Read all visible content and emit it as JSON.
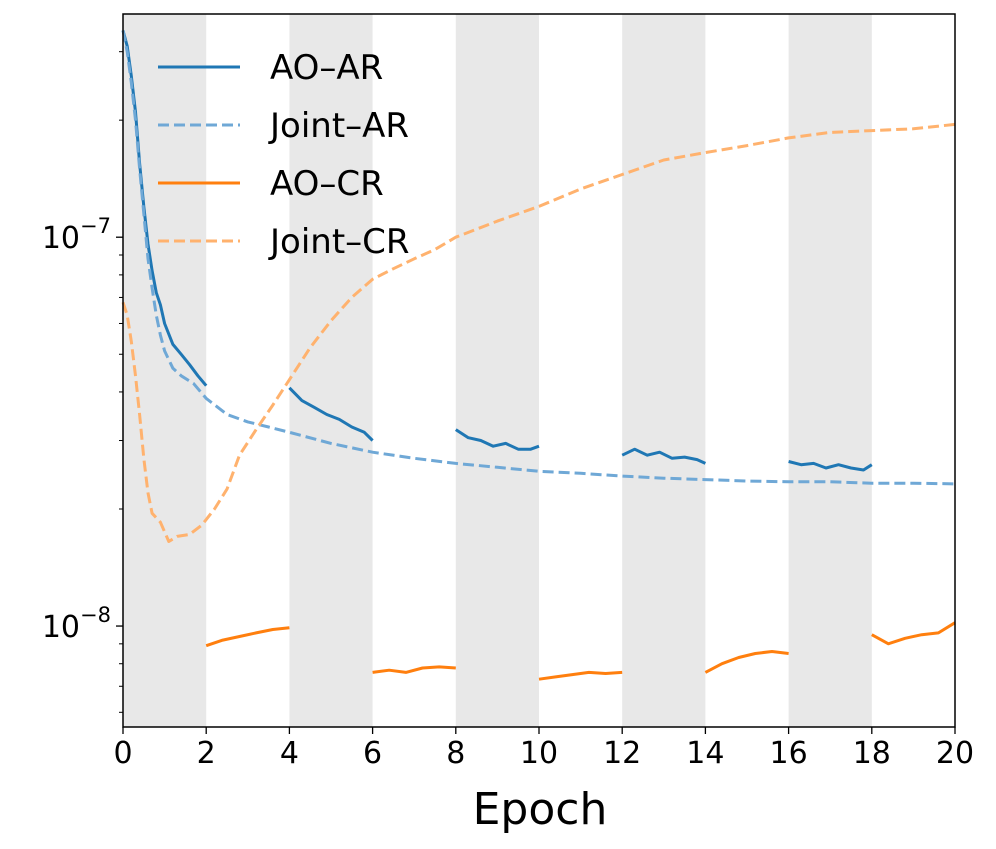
{
  "chart_data": {
    "type": "line",
    "title": "",
    "xlabel": "Epoch",
    "ylabel": "",
    "yscale": "log",
    "xlim": [
      0,
      20
    ],
    "ylim": [
      5.5e-09,
      3.75e-07
    ],
    "x_ticks": [
      0,
      2,
      4,
      6,
      8,
      10,
      12,
      14,
      16,
      18,
      20
    ],
    "x_tick_labels": [
      "0",
      "2",
      "4",
      "6",
      "8",
      "10",
      "12",
      "14",
      "16",
      "18",
      "20"
    ],
    "y_major_ticks": [
      1e-08,
      1e-07
    ],
    "y_tick_labels": [
      {
        "base": "10",
        "exp": "−8"
      },
      {
        "base": "10",
        "exp": "−7"
      }
    ],
    "shaded_epoch_ranges": [
      [
        0,
        2
      ],
      [
        4,
        6
      ],
      [
        8,
        10
      ],
      [
        12,
        14
      ],
      [
        16,
        18
      ]
    ],
    "legend_position": "top-left",
    "series": [
      {
        "name": "AO–AR",
        "color": "#1f77b4",
        "style": "solid",
        "points": [
          [
            0,
            3.4e-07
          ],
          [
            0.1,
            3.1e-07
          ],
          [
            0.2,
            2.6e-07
          ],
          [
            0.3,
            2.1e-07
          ],
          [
            0.4,
            1.55e-07
          ],
          [
            0.5,
            1.2e-07
          ],
          [
            0.6,
            9.6e-08
          ],
          [
            0.7,
            8.2e-08
          ],
          [
            0.8,
            7.2e-08
          ],
          [
            0.9,
            6.7e-08
          ],
          [
            1.0,
            6e-08
          ],
          [
            1.2,
            5.3e-08
          ],
          [
            1.4,
            5e-08
          ],
          [
            1.6,
            4.7e-08
          ],
          [
            1.8,
            4.4e-08
          ],
          [
            2.0,
            4.15e-08
          ],
          null,
          [
            4.0,
            4.1e-08
          ],
          [
            4.3,
            3.8e-08
          ],
          [
            4.6,
            3.65e-08
          ],
          [
            4.9,
            3.5e-08
          ],
          [
            5.2,
            3.4e-08
          ],
          [
            5.5,
            3.25e-08
          ],
          [
            5.8,
            3.15e-08
          ],
          [
            6.0,
            3e-08
          ],
          null,
          [
            8.0,
            3.2e-08
          ],
          [
            8.3,
            3.05e-08
          ],
          [
            8.6,
            3e-08
          ],
          [
            8.9,
            2.9e-08
          ],
          [
            9.2,
            2.95e-08
          ],
          [
            9.5,
            2.85e-08
          ],
          [
            9.8,
            2.85e-08
          ],
          [
            10.0,
            2.9e-08
          ],
          null,
          [
            12.0,
            2.75e-08
          ],
          [
            12.3,
            2.85e-08
          ],
          [
            12.6,
            2.75e-08
          ],
          [
            12.9,
            2.8e-08
          ],
          [
            13.2,
            2.7e-08
          ],
          [
            13.5,
            2.72e-08
          ],
          [
            13.8,
            2.68e-08
          ],
          [
            14.0,
            2.62e-08
          ],
          null,
          [
            16.0,
            2.65e-08
          ],
          [
            16.3,
            2.6e-08
          ],
          [
            16.6,
            2.62e-08
          ],
          [
            16.9,
            2.55e-08
          ],
          [
            17.2,
            2.6e-08
          ],
          [
            17.5,
            2.55e-08
          ],
          [
            17.8,
            2.52e-08
          ],
          [
            18.0,
            2.6e-08
          ]
        ]
      },
      {
        "name": "Joint–AR",
        "color": "#6fa8d6",
        "style": "dashed",
        "points": [
          [
            0,
            3.4e-07
          ],
          [
            0.1,
            3e-07
          ],
          [
            0.2,
            2.5e-07
          ],
          [
            0.3,
            2e-07
          ],
          [
            0.4,
            1.5e-07
          ],
          [
            0.5,
            1.15e-07
          ],
          [
            0.6,
            8.8e-08
          ],
          [
            0.7,
            7.4e-08
          ],
          [
            0.8,
            6.3e-08
          ],
          [
            0.9,
            5.6e-08
          ],
          [
            1.0,
            5.1e-08
          ],
          [
            1.2,
            4.6e-08
          ],
          [
            1.4,
            4.4e-08
          ],
          [
            1.7,
            4.2e-08
          ],
          [
            2.0,
            3.85e-08
          ],
          [
            2.5,
            3.5e-08
          ],
          [
            3.0,
            3.35e-08
          ],
          [
            3.5,
            3.25e-08
          ],
          [
            4.0,
            3.15e-08
          ],
          [
            5.0,
            2.95e-08
          ],
          [
            6.0,
            2.8e-08
          ],
          [
            7.0,
            2.7e-08
          ],
          [
            8.0,
            2.62e-08
          ],
          [
            9.0,
            2.56e-08
          ],
          [
            10.0,
            2.5e-08
          ],
          [
            11.0,
            2.47e-08
          ],
          [
            12.0,
            2.43e-08
          ],
          [
            13.0,
            2.4e-08
          ],
          [
            14.0,
            2.38e-08
          ],
          [
            15.0,
            2.36e-08
          ],
          [
            16.0,
            2.35e-08
          ],
          [
            17.0,
            2.35e-08
          ],
          [
            18.0,
            2.33e-08
          ],
          [
            19.0,
            2.33e-08
          ],
          [
            20.0,
            2.32e-08
          ]
        ]
      },
      {
        "name": "AO–CR",
        "color": "#ff7f0e",
        "style": "solid",
        "points": [
          [
            2.0,
            8.9e-09
          ],
          [
            2.4,
            9.2e-09
          ],
          [
            2.8,
            9.4e-09
          ],
          [
            3.2,
            9.6e-09
          ],
          [
            3.6,
            9.8e-09
          ],
          [
            4.0,
            9.9e-09
          ],
          null,
          [
            6.0,
            7.6e-09
          ],
          [
            6.4,
            7.7e-09
          ],
          [
            6.8,
            7.6e-09
          ],
          [
            7.2,
            7.8e-09
          ],
          [
            7.6,
            7.85e-09
          ],
          [
            8.0,
            7.8e-09
          ],
          null,
          [
            10.0,
            7.3e-09
          ],
          [
            10.4,
            7.4e-09
          ],
          [
            10.8,
            7.5e-09
          ],
          [
            11.2,
            7.6e-09
          ],
          [
            11.6,
            7.55e-09
          ],
          [
            12.0,
            7.6e-09
          ],
          null,
          [
            14.0,
            7.6e-09
          ],
          [
            14.4,
            8e-09
          ],
          [
            14.8,
            8.3e-09
          ],
          [
            15.2,
            8.5e-09
          ],
          [
            15.6,
            8.6e-09
          ],
          [
            16.0,
            8.5e-09
          ],
          null,
          [
            18.0,
            9.5e-09
          ],
          [
            18.4,
            9e-09
          ],
          [
            18.8,
            9.3e-09
          ],
          [
            19.2,
            9.5e-09
          ],
          [
            19.6,
            9.6e-09
          ],
          [
            20.0,
            1.02e-08
          ]
        ]
      },
      {
        "name": "Joint–CR",
        "color": "#ffb26e",
        "style": "dashed",
        "points": [
          [
            0,
            6.8e-08
          ],
          [
            0.1,
            6.3e-08
          ],
          [
            0.2,
            5.4e-08
          ],
          [
            0.3,
            4.4e-08
          ],
          [
            0.4,
            3.5e-08
          ],
          [
            0.5,
            2.7e-08
          ],
          [
            0.6,
            2.2e-08
          ],
          [
            0.7,
            1.95e-08
          ],
          [
            0.9,
            1.85e-08
          ],
          [
            1.1,
            1.65e-08
          ],
          [
            1.3,
            1.7e-08
          ],
          [
            1.6,
            1.72e-08
          ],
          [
            1.9,
            1.82e-08
          ],
          [
            2.2,
            2e-08
          ],
          [
            2.5,
            2.25e-08
          ],
          [
            2.8,
            2.75e-08
          ],
          [
            3.2,
            3.2e-08
          ],
          [
            3.6,
            3.7e-08
          ],
          [
            4.0,
            4.3e-08
          ],
          [
            4.5,
            5.2e-08
          ],
          [
            5.0,
            6.1e-08
          ],
          [
            5.5,
            7e-08
          ],
          [
            6.0,
            7.8e-08
          ],
          [
            6.5,
            8.3e-08
          ],
          [
            7.0,
            8.8e-08
          ],
          [
            7.5,
            9.3e-08
          ],
          [
            8.0,
            1e-07
          ],
          [
            9.0,
            1.1e-07
          ],
          [
            10.0,
            1.2e-07
          ],
          [
            11.0,
            1.33e-07
          ],
          [
            12.0,
            1.45e-07
          ],
          [
            13.0,
            1.58e-07
          ],
          [
            14.0,
            1.65e-07
          ],
          [
            15.0,
            1.72e-07
          ],
          [
            16.0,
            1.8e-07
          ],
          [
            17.0,
            1.86e-07
          ],
          [
            18.0,
            1.88e-07
          ],
          [
            19.0,
            1.9e-07
          ],
          [
            20.0,
            1.95e-07
          ]
        ]
      }
    ]
  }
}
